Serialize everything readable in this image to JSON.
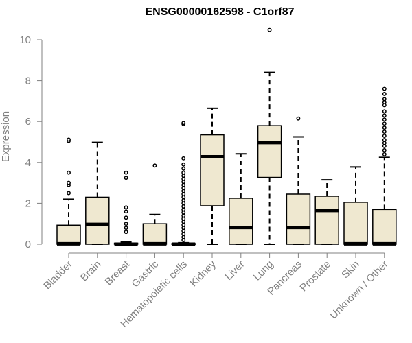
{
  "chart_data": {
    "type": "boxplot",
    "title": "ENSG00000162598 - C1orf87",
    "xlabel": "",
    "ylabel": "Expression",
    "ylim": [
      0,
      10.5
    ],
    "yticks": [
      0,
      2,
      4,
      6,
      8,
      10
    ],
    "grid": false,
    "legend": "none",
    "box_fill": "#efe8d0",
    "box_stroke": "#000000",
    "axis_color": "#808080",
    "categories": [
      "Bladder",
      "Brain",
      "Breast",
      "Gastric",
      "Hematopoietic cells",
      "Kidney",
      "Liver",
      "Lung",
      "Pancreas",
      "Prostate",
      "Skin",
      "Unknown / Other"
    ],
    "boxes": [
      {
        "category": "Bladder",
        "min": 0,
        "q1": 0,
        "median": 0.02,
        "q3": 0.93,
        "max": 2.2,
        "outliers": [
          2.5,
          2.9,
          3.0,
          3.5,
          5.05,
          5.12
        ]
      },
      {
        "category": "Brain",
        "min": 0,
        "q1": 0,
        "median": 0.97,
        "q3": 2.3,
        "max": 4.98,
        "outliers": []
      },
      {
        "category": "Breast",
        "min": 0,
        "q1": 0,
        "median": 0.0,
        "q3": 0.05,
        "max": 0.1,
        "outliers": [
          0.6,
          0.8,
          1.0,
          1.3,
          1.6,
          1.8,
          3.25,
          3.5
        ]
      },
      {
        "category": "Gastric",
        "min": 0,
        "q1": 0,
        "median": 0.02,
        "q3": 1.0,
        "max": 1.45,
        "outliers": [
          3.85
        ]
      },
      {
        "category": "Hematopoietic cells",
        "min": 0,
        "q1": 0,
        "median": 0.0,
        "q3": 0.03,
        "max": 0.07,
        "outliers": [
          0.2,
          0.35,
          0.5,
          0.65,
          0.8,
          0.95,
          1.1,
          1.25,
          1.4,
          1.55,
          1.7,
          1.85,
          2.0,
          2.15,
          2.3,
          2.45,
          2.6,
          2.75,
          2.9,
          3.05,
          3.2,
          3.35,
          3.5,
          3.7,
          3.9,
          4.2,
          5.88,
          5.93
        ]
      },
      {
        "category": "Kidney",
        "min": 0,
        "q1": 1.88,
        "median": 4.28,
        "q3": 5.35,
        "max": 6.65,
        "outliers": []
      },
      {
        "category": "Liver",
        "min": 0,
        "q1": 0,
        "median": 0.82,
        "q3": 2.25,
        "max": 4.42,
        "outliers": []
      },
      {
        "category": "Lung",
        "min": 0,
        "q1": 3.27,
        "median": 4.97,
        "q3": 5.8,
        "max": 8.4,
        "outliers": [
          10.48
        ]
      },
      {
        "category": "Pancreas",
        "min": 0,
        "q1": 0,
        "median": 0.82,
        "q3": 2.45,
        "max": 5.25,
        "outliers": [
          6.15
        ]
      },
      {
        "category": "Prostate",
        "min": 0,
        "q1": 0,
        "median": 1.65,
        "q3": 2.35,
        "max": 3.15,
        "outliers": []
      },
      {
        "category": "Skin",
        "min": 0,
        "q1": 0,
        "median": 0.02,
        "q3": 2.05,
        "max": 3.78,
        "outliers": []
      },
      {
        "category": "Unknown / Other",
        "min": 0,
        "q1": 0,
        "median": 0.02,
        "q3": 1.7,
        "max": 4.25,
        "outliers": [
          4.4,
          4.6,
          4.8,
          4.95,
          5.1,
          5.3,
          5.5,
          5.7,
          5.9,
          6.1,
          6.3,
          6.5,
          6.8,
          6.95,
          7.1,
          7.35,
          7.6
        ]
      }
    ]
  }
}
